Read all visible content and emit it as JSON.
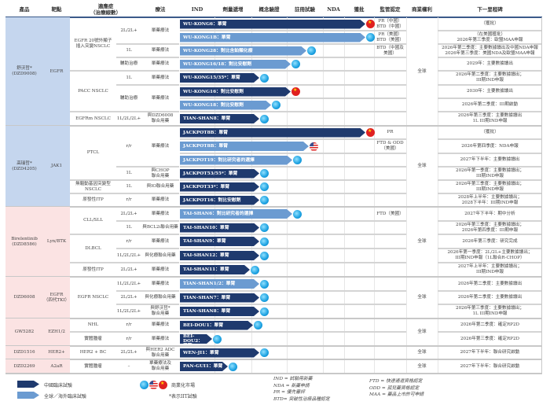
{
  "headers": {
    "product": "產品",
    "target": "靶點",
    "indication": "適應症\n（治療線數）",
    "therapy": "療法",
    "ind": "IND",
    "dose_escalation": "劑量遞增",
    "poc": "概念驗證",
    "registrational": "註冊試驗",
    "nda": "NDA",
    "approved": "獲批",
    "regulatory": "監管認定",
    "rights": "商業權利",
    "milestone": "下一里程碑"
  },
  "colors": {
    "china_trial": "#1f3a6e",
    "global_trial": "#6b9bd1",
    "group_blue": "#c5d6ee",
    "group_pink": "#fbe3e3"
  },
  "groups": [
    {
      "product": "舒沃哲*\n(DZD9008)",
      "target": "EGFR",
      "rights": "全球",
      "fill": "blue",
      "indications": [
        {
          "text": "EGFR 20號外顯子\n插入突變NSCLC",
          "rows": 4
        },
        {
          "text": "PACC NSCLC",
          "rows": 3
        },
        {
          "text": "EGFRm NSCLC",
          "rows": 1
        }
      ],
      "lines": [
        {
          "text": "2L/2L+",
          "rows": 2
        },
        {
          "text": "1L",
          "rows": 1
        },
        {
          "text": "輔助治療",
          "rows": 1
        },
        {
          "text": "1L",
          "rows": 1
        },
        {
          "text": "輔助治療",
          "rows": 2
        },
        {
          "text": "1L/2L/2L+",
          "rows": 1
        }
      ],
      "therapies": [
        {
          "text": "單藥療法",
          "rows": 2
        },
        {
          "text": "單藥療法",
          "rows": 1
        },
        {
          "text": "單藥療法",
          "rows": 1
        },
        {
          "text": "單藥療法",
          "rows": 1
        },
        {
          "text": "單藥療法",
          "rows": 2
        },
        {
          "text": "與DZD6008\n聯合用藥",
          "rows": 1
        }
      ],
      "trials": [
        {
          "name": "WU-KONG6：單臂",
          "type": "china",
          "marker": "china-flag",
          "regulatory": "PR（中國）\nBTD（中國）",
          "milestone": "（獲批）"
        },
        {
          "name": "WU-KONG1B：單臂",
          "type": "global",
          "marker": "global",
          "regulatory": "PR（美國）\nBTD（美國）",
          "milestone": "（在美國獲批）\n2026年第三季度：歐盟MAA申報"
        },
        {
          "name": "WU-KONG28：對比含鉑類化療",
          "type": "global",
          "marker": "global",
          "regulatory": "BTD（中國及\n美國）",
          "milestone": "2026年第二季度：主要數據讀出及中國NDA申報\n2026年第三季度：美國NDA及歐盟MAA申報"
        },
        {
          "name": "WU-KONG16/18：對比安慰劑",
          "type": "global",
          "marker": "global",
          "regulatory": "",
          "milestone": "2029年：主要數據讀出"
        },
        {
          "name": "WU-KONG15/35*：單臂",
          "type": "china",
          "marker": "global",
          "regulatory": "",
          "milestone": "2026年第二季度：主要數據讀出；\nIII期IND申報"
        },
        {
          "name": "WU-KONG16：對比安慰劑",
          "type": "china",
          "marker": "china-flag",
          "regulatory": "",
          "milestone": "2030年：主要數據讀出"
        },
        {
          "name": "WU-KONG18：對比安慰劑",
          "type": "global",
          "marker": "global",
          "regulatory": "",
          "milestone": "2026年第二季度：III期啟動"
        },
        {
          "name": "TIAN-SHAN8：單臂",
          "type": "china",
          "marker": "global",
          "regulatory": "",
          "milestone": "2026年第三季度：主要數據讀出\n1L III期IND申報"
        }
      ]
    },
    {
      "product": "高瑞哲*\n(DZD4205)",
      "target": "JAK1",
      "rights": "全球",
      "fill": "blue",
      "indications": [
        {
          "text": "PTCL",
          "rows": 4
        },
        {
          "text": "無驅動基因突變型\nNSCLC",
          "rows": 1
        },
        {
          "text": "原發性ITP",
          "rows": 1
        }
      ],
      "lines": [
        {
          "text": "r/r",
          "rows": 3
        },
        {
          "text": "1L",
          "rows": 1
        },
        {
          "text": "1L",
          "rows": 1
        },
        {
          "text": "r/r",
          "rows": 1
        }
      ],
      "therapies": [
        {
          "text": "單藥療法",
          "rows": 3
        },
        {
          "text": "與CHOP\n聯合用藥",
          "rows": 1
        },
        {
          "text": "與IO聯合用藥",
          "rows": 1
        },
        {
          "text": "單藥療法",
          "rows": 1
        }
      ],
      "trials": [
        {
          "name": "JACKPOT8B：單臂",
          "type": "china",
          "marker": "china-flag",
          "regulatory": "PR",
          "milestone": "（獲批）"
        },
        {
          "name": "JACKPOT8B：單臂",
          "type": "global",
          "marker": "us-flag",
          "regulatory": "FTD & ODD\n（美國）",
          "milestone": "2026年第四季度：NDA申報"
        },
        {
          "name": "JACKPOT19：對比研究者的選擇",
          "type": "global",
          "marker": "global",
          "regulatory": "",
          "milestone": "2027年下半年：主要數據讀出"
        },
        {
          "name": "JACKPOT53/55*：單臂",
          "type": "china",
          "marker": "global",
          "regulatory": "",
          "milestone": "2026年第一季度：主要數據讀出；\nIII期IND申報"
        },
        {
          "name": "JACKPOT33*：單臂",
          "type": "china",
          "marker": "global",
          "regulatory": "",
          "milestone": "2026年第三季度：主要數據讀出；\nIII期IND申報"
        },
        {
          "name": "JACKPOT16：對比安慰劑",
          "type": "china",
          "marker": "global",
          "regulatory": "",
          "milestone": "2028年上半年：主要數據讀出；\n2028下半年：III期IND申報"
        }
      ]
    },
    {
      "product": "Birelentinib\n(DZD8586)",
      "target": "Lyn/BTK",
      "rights": "全球",
      "fill": "pink",
      "indications": [
        {
          "text": "CLL/SLL",
          "rows": 2
        },
        {
          "text": "DLBCL",
          "rows": 2
        },
        {
          "text": "原發性ITP",
          "rows": 1
        }
      ],
      "lines": [
        {
          "text": "2L/2L+",
          "rows": 1
        },
        {
          "text": "1L",
          "rows": 1
        },
        {
          "text": "r/r",
          "rows": 1
        },
        {
          "text": "1L/2L/2L+",
          "rows": 1
        },
        {
          "text": "2L/2L+",
          "rows": 1
        }
      ],
      "therapies": [
        {
          "text": "單藥療法",
          "rows": 1
        },
        {
          "text": "與BCL2i聯合用藥",
          "rows": 1
        },
        {
          "text": "單藥療法",
          "rows": 1
        },
        {
          "text": "與化療聯合用藥",
          "rows": 1
        },
        {
          "text": "單藥療法",
          "rows": 1
        }
      ],
      "trials": [
        {
          "name": "TAI-SHAN6：對比研究者的選擇",
          "type": "global",
          "marker": "global",
          "regulatory": "FTD（美國）",
          "milestone": "2027年下半年：期中分析"
        },
        {
          "name": "TAI-SHAN10：單臂",
          "type": "china",
          "marker": "global",
          "regulatory": "",
          "milestone": "2026年第三季度：主要數據讀出；\n2026年第四季度：III期申報"
        },
        {
          "name": "TAI-SHAN9：單臂",
          "type": "china",
          "marker": "global",
          "regulatory": "",
          "milestone": "2026年第三季度：研究完成"
        },
        {
          "name": "TAI-SHAN12：單臂",
          "type": "china",
          "marker": "global",
          "regulatory": "",
          "milestone": "2026年第一季度：2L/2L+主要數據讀出；\nIII期IND申報（1L聯合R-CHOP）"
        },
        {
          "name": "TAI-SHAN11：單臂",
          "type": "china",
          "marker": "global",
          "regulatory": "",
          "milestone": "2027年上半年：主要數據讀出；\nIII期IND申報"
        }
      ]
    },
    {
      "product": "DZD6008",
      "target": "EGFR\n（四代TKI）",
      "rights": "全球",
      "fill": "pink",
      "indications": [
        {
          "text": "EGFR NSCLC",
          "rows": 3
        }
      ],
      "lines": [
        {
          "text": "1L/2L/2L+",
          "rows": 1
        },
        {
          "text": "2L/2L+",
          "rows": 1
        },
        {
          "text": "1L/2L/2L+",
          "rows": 1
        }
      ],
      "therapies": [
        {
          "text": "單藥療法",
          "rows": 1
        },
        {
          "text": "與化療聯合用藥",
          "rows": 1
        },
        {
          "text": "與舒沃哲*\n聯合用藥",
          "rows": 1
        }
      ],
      "trials": [
        {
          "name": "TIAN-SHAN1/2：單臂",
          "type": "global",
          "marker": "global",
          "regulatory": "",
          "milestone": "2026年第二季度：主要數據讀出"
        },
        {
          "name": "TIAN-SHAN7：單臂",
          "type": "china",
          "marker": "global",
          "regulatory": "",
          "milestone": "2026年第二季度：主要數據讀出"
        },
        {
          "name": "TIAN-SHAN8：單臂",
          "type": "china",
          "marker": "global",
          "regulatory": "",
          "milestone": "2026年第三季度：主要數據讀出；\n1L III期IND申報"
        }
      ]
    },
    {
      "product": "GW5282",
      "target": "EZH1/2",
      "rights": "全球",
      "fill": "pink",
      "indications": [
        {
          "text": "NHL",
          "rows": 1
        },
        {
          "text": "實體腫瘤",
          "rows": 1
        }
      ],
      "lines": [
        {
          "text": "r/r",
          "rows": 1
        },
        {
          "text": "r/r",
          "rows": 1
        }
      ],
      "therapies": [
        {
          "text": "單藥療法",
          "rows": 1
        },
        {
          "text": "單藥療法",
          "rows": 1
        }
      ],
      "trials": [
        {
          "name": "BEI-DOU1：單臂",
          "type": "china",
          "marker": "global",
          "regulatory": "",
          "milestone": "2026年第二季度：確定RP2D"
        },
        {
          "name": "BEI-DOU2：\n單臂",
          "type": "china",
          "marker": "global",
          "regulatory": "",
          "milestone": "2026年第三季度：確定RP2D"
        }
      ]
    },
    {
      "product": "DZD1516",
      "target": "HER2+",
      "rights": "全球",
      "fill": "pink",
      "indications": [
        {
          "text": "HER2 + BC",
          "rows": 1
        }
      ],
      "lines": [
        {
          "text": "2L/2L+",
          "rows": 1
        }
      ],
      "therapies": [
        {
          "text": "與HER2 ADC\n聯合用藥",
          "rows": 1
        }
      ],
      "trials": [
        {
          "name": "WEN-JI1：單臂",
          "type": "china",
          "marker": "global",
          "regulatory": "",
          "milestone": "2027年下半年：聯合研究啟動"
        }
      ]
    },
    {
      "product": "DZD2269",
      "target": "A2aR",
      "rights": "全球",
      "fill": "pink",
      "indications": [
        {
          "text": "實體腫瘤",
          "rows": 1
        }
      ],
      "lines": [
        {
          "text": "–",
          "rows": 1
        }
      ],
      "therapies": [
        {
          "text": "單藥療法及\n聯合用藥",
          "rows": 1
        }
      ],
      "trials": [
        {
          "name": "PAN-GUI1：單臂",
          "type": "china",
          "marker": "global",
          "regulatory": "",
          "milestone": "2027年下半年：聯合研究啟動"
        }
      ]
    }
  ],
  "legend": {
    "china_trial": "中國臨床試驗",
    "global_trial": "全球／海外臨床試驗",
    "commercial": "商業化市場",
    "iit_note": "*表示IIT試驗",
    "abbr_left": "IND = 試驗用新藥\nNDA = 新藥申請\nPR = 優先審評\nBTD= 突破性治療品種認定",
    "abbr_right": "FTD = 快速通道資格認定\nODD = 孤兒藥資格認定\nMAA = 藥品上市許可申請"
  }
}
